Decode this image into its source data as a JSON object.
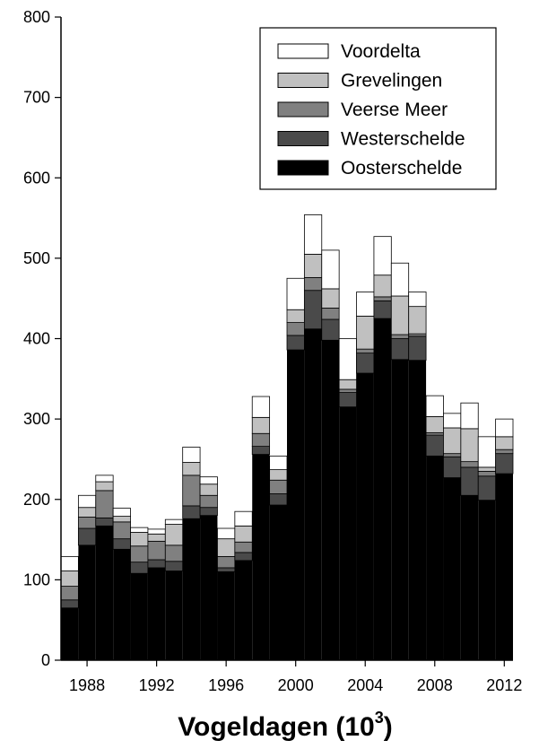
{
  "chart_data": {
    "type": "bar",
    "stacked": true,
    "title": "",
    "xlabel_main": "Vogeldagen (10",
    "xlabel_sup": "3",
    "xlabel_end": ")",
    "ylabel": "",
    "ylim": [
      0,
      800
    ],
    "yticks": [
      "0",
      "100",
      "200",
      "300",
      "400",
      "500",
      "600",
      "700",
      "800"
    ],
    "xticks": [
      "1988",
      "1992",
      "1996",
      "2000",
      "2004",
      "2008",
      "2012"
    ],
    "xtick_years": [
      1988,
      1992,
      1996,
      2000,
      2004,
      2008,
      2012
    ],
    "years": [
      1987,
      1988,
      1989,
      1990,
      1991,
      1992,
      1993,
      1994,
      1995,
      1996,
      1997,
      1998,
      1999,
      2000,
      2001,
      2002,
      2003,
      2004,
      2005,
      2006,
      2007,
      2008,
      2009,
      2010,
      2011,
      2012
    ],
    "grid": false,
    "legend_position": "top-right",
    "series": [
      {
        "name": "Oosterschelde",
        "color": "#000000",
        "values": [
          65,
          143,
          167,
          138,
          108,
          115,
          111,
          176,
          180,
          110,
          124,
          256,
          193,
          386,
          412,
          398,
          315,
          357,
          425,
          374,
          373,
          254,
          227,
          205,
          199,
          232
        ]
      },
      {
        "name": "Westerschelde",
        "color": "#4a4a4a",
        "values": [
          10,
          21,
          10,
          13,
          14,
          10,
          12,
          16,
          10,
          5,
          10,
          10,
          14,
          18,
          48,
          26,
          18,
          25,
          22,
          26,
          30,
          26,
          26,
          35,
          30,
          25
        ]
      },
      {
        "name": "Veerse Meer",
        "color": "#808080",
        "values": [
          17,
          14,
          34,
          21,
          20,
          23,
          20,
          38,
          15,
          14,
          13,
          16,
          17,
          16,
          16,
          14,
          4,
          5,
          5,
          5,
          3,
          3,
          4,
          7,
          6,
          5
        ]
      },
      {
        "name": "Grevelingen",
        "color": "#c0c0c0",
        "values": [
          19,
          12,
          11,
          7,
          17,
          9,
          26,
          16,
          14,
          22,
          20,
          20,
          13,
          16,
          29,
          24,
          12,
          41,
          27,
          48,
          34,
          20,
          32,
          41,
          5,
          16
        ]
      },
      {
        "name": "Voordelta",
        "color": "#ffffff",
        "values": [
          18,
          15,
          8,
          10,
          6,
          6,
          6,
          19,
          9,
          13,
          18,
          26,
          17,
          39,
          49,
          48,
          51,
          30,
          48,
          41,
          18,
          26,
          18,
          32,
          38,
          22
        ]
      }
    ],
    "legend_order": [
      "Voordelta",
      "Grevelingen",
      "Veerse Meer",
      "Westerschelde",
      "Oosterschelde"
    ]
  }
}
